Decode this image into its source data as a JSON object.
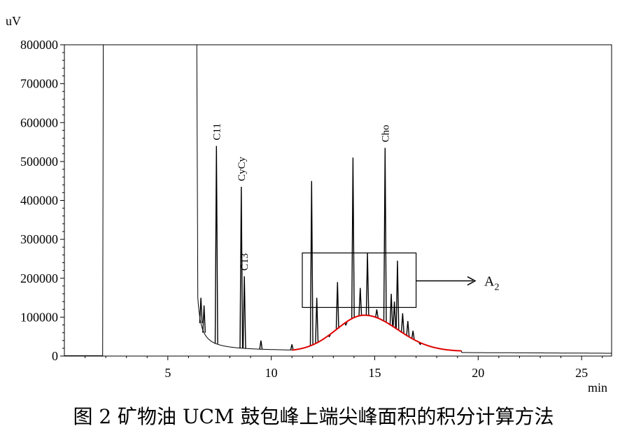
{
  "chart_data": {
    "type": "line",
    "y_unit": "uV",
    "x_unit": "min",
    "xlim": [
      0,
      26.5
    ],
    "ylim": [
      0,
      800000
    ],
    "x_ticks": [
      5,
      10,
      15,
      20,
      25
    ],
    "y_ticks": [
      0,
      100000,
      200000,
      300000,
      400000,
      500000,
      600000,
      700000,
      800000
    ],
    "y_tick_labels": [
      "0",
      "100000",
      "200000",
      "300000",
      "400000",
      "500000",
      "600000",
      "700000",
      "800000"
    ],
    "x_tick_labels": [
      "5",
      "10",
      "15",
      "20",
      "25"
    ],
    "peaks": [
      {
        "label": "C11",
        "x": 7.35,
        "y": 540000
      },
      {
        "label": "CyCy",
        "x": 8.55,
        "y": 435000
      },
      {
        "label": "C13",
        "x": 8.7,
        "y": 205000
      },
      {
        "label": "Cho",
        "x": 15.5,
        "y": 535000
      }
    ],
    "ucm_hump": {
      "x_start": 11.0,
      "x_peak": 14.5,
      "x_end": 19.2,
      "y_base": 12000,
      "y_peak": 105000,
      "color": "#e00000"
    },
    "annotation_box": {
      "label_main": "A",
      "label_sub": "2",
      "x_range": [
        11.5,
        17.0
      ],
      "y_range": [
        125000,
        265000
      ]
    }
  },
  "caption": "图 2  矿物油 UCM 鼓包峰上端尖峰面积的积分计算方法"
}
